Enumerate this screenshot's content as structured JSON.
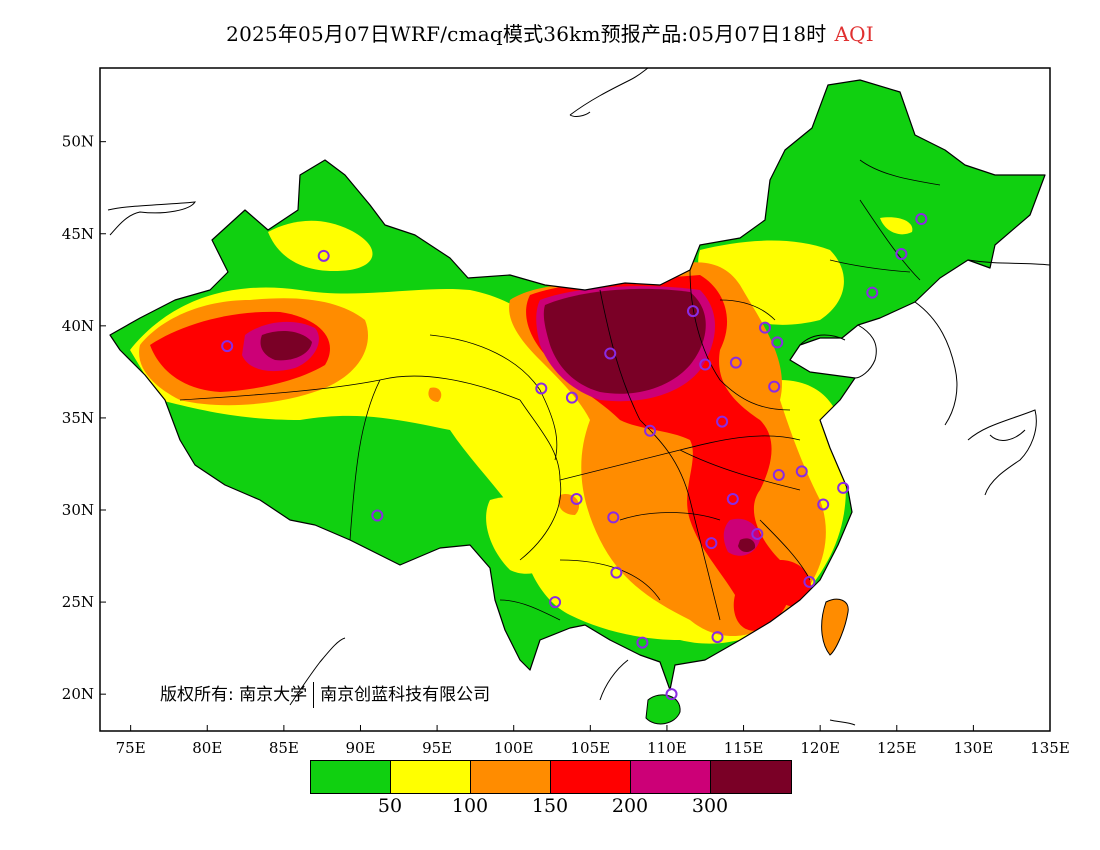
{
  "title": {
    "text": "2025年05月07日WRF/cmaq模式36km预报产品:05月07日18时",
    "variable": "AQI",
    "variable_color": "#e03030"
  },
  "axes": {
    "lat_labels": [
      "50N",
      "45N",
      "40N",
      "35N",
      "30N",
      "25N",
      "20N"
    ],
    "lon_labels": [
      "75E",
      "80E",
      "85E",
      "90E",
      "95E",
      "100E",
      "105E",
      "110E",
      "115E",
      "120E",
      "125E",
      "130E",
      "135E"
    ],
    "lat_range": [
      18,
      54
    ],
    "lon_range": [
      73,
      135
    ]
  },
  "legend": {
    "colors": [
      "#10d010",
      "#ffff00",
      "#ff8c00",
      "#ff0000",
      "#cc0077",
      "#7a0026"
    ],
    "labels": [
      "50",
      "100",
      "150",
      "200",
      "300"
    ]
  },
  "copyright": {
    "left": "版权所有: 南京大学",
    "right": "南京创蓝科技有限公司"
  },
  "stations": [
    [
      87.6,
      43.8
    ],
    [
      81.3,
      38.9
    ],
    [
      91.1,
      29.7
    ],
    [
      101.8,
      36.6
    ],
    [
      103.8,
      36.1
    ],
    [
      106.3,
      38.5
    ],
    [
      111.7,
      40.8
    ],
    [
      112.5,
      37.9
    ],
    [
      114.5,
      38.0
    ],
    [
      116.4,
      39.9
    ],
    [
      117.2,
      39.1
    ],
    [
      117.0,
      36.7
    ],
    [
      113.6,
      34.8
    ],
    [
      108.9,
      34.3
    ],
    [
      104.1,
      30.6
    ],
    [
      106.5,
      29.6
    ],
    [
      106.7,
      26.6
    ],
    [
      102.7,
      25.0
    ],
    [
      108.4,
      22.8
    ],
    [
      113.3,
      23.1
    ],
    [
      110.3,
      20.0
    ],
    [
      112.9,
      28.2
    ],
    [
      115.9,
      28.7
    ],
    [
      114.3,
      30.6
    ],
    [
      117.3,
      31.9
    ],
    [
      118.8,
      32.1
    ],
    [
      120.2,
      30.3
    ],
    [
      121.5,
      31.2
    ],
    [
      119.3,
      26.1
    ],
    [
      123.4,
      41.8
    ],
    [
      125.3,
      43.9
    ],
    [
      126.6,
      45.8
    ]
  ]
}
